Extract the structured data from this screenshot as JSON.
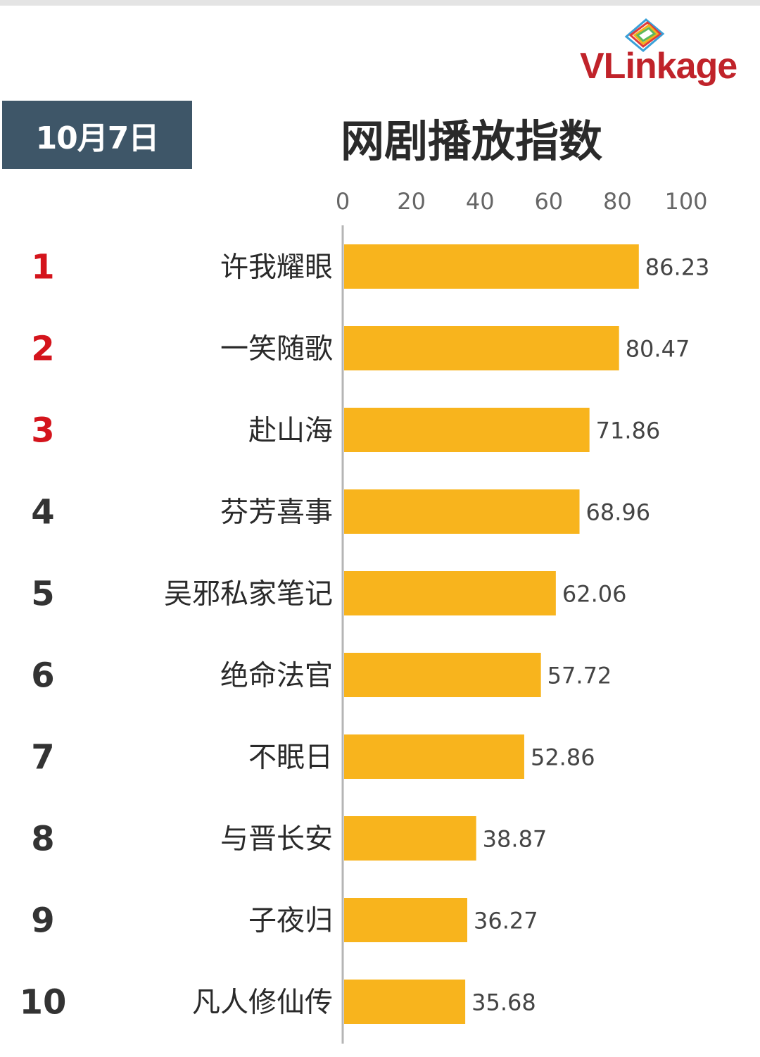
{
  "header": {
    "date_label": "10月7日",
    "title": "网剧播放指数",
    "logo_text": "VLinkage"
  },
  "colors": {
    "bar": "#f8b41d",
    "top_rank": "#d4141c",
    "rank": "#333333",
    "badge": "#3e5668",
    "logo": "#c0232a"
  },
  "chart_data": {
    "type": "bar",
    "orientation": "horizontal",
    "title": "网剧播放指数",
    "xlim": [
      0,
      100
    ],
    "x_ticks": [
      "0",
      "20",
      "40",
      "60",
      "80",
      "100"
    ],
    "x_tick_values": [
      0,
      20,
      40,
      60,
      80,
      100
    ],
    "ranks": [
      "1",
      "2",
      "3",
      "4",
      "5",
      "6",
      "7",
      "8",
      "9",
      "10"
    ],
    "categories": [
      "许我耀眼",
      "一笑随歌",
      "赴山海",
      "芬芳喜事",
      "吴邪私家笔记",
      "绝命法官",
      "不眠日",
      "与晋长安",
      "子夜归",
      "凡人修仙传"
    ],
    "values": [
      86.23,
      80.47,
      71.86,
      68.96,
      62.06,
      57.72,
      52.86,
      38.87,
      36.27,
      35.68
    ],
    "value_labels": [
      "86.23",
      "80.47",
      "71.86",
      "68.96",
      "62.06",
      "57.72",
      "52.86",
      "38.87",
      "36.27",
      "35.68"
    ],
    "highlight_top": 3,
    "grid": false
  }
}
